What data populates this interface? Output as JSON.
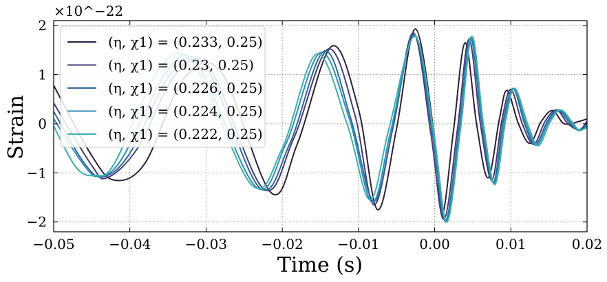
{
  "chart_data": {
    "type": "line",
    "xlabel": "Time (s)",
    "ylabel": "Strain",
    "xlim": [
      -0.05,
      0.02
    ],
    "ylim": [
      -2.2,
      2.1
    ],
    "y_scale_note": "×10^−22",
    "xticks": [
      -0.05,
      -0.04,
      -0.03,
      -0.02,
      -0.01,
      0.0,
      0.01,
      0.02
    ],
    "xtick_labels": [
      "−0.05",
      "−0.04",
      "−0.03",
      "−0.02",
      "−0.01",
      "0.00",
      "0.01",
      "0.02"
    ],
    "yticks": [
      -2,
      -1,
      0,
      1,
      2
    ],
    "ytick_labels": [
      "−2",
      "−1",
      "0",
      "1",
      "2"
    ],
    "grid": true,
    "legend_placement": "top-left",
    "series": [
      {
        "name": "(η, χ1) = (0.233, 0.25)",
        "color": "#2e1e3b",
        "x": [
          -0.05,
          -0.045,
          -0.042,
          -0.038,
          -0.033,
          -0.028,
          -0.0215,
          -0.018,
          -0.0135,
          -0.01,
          -0.0075,
          -0.005,
          -0.0025,
          0.0,
          0.001,
          0.0025,
          0.004,
          0.0055,
          0.007,
          0.0085,
          0.0095,
          0.011,
          0.0125,
          0.014,
          0.0155,
          0.017,
          0.019,
          0.02
        ],
        "values": [
          0.78,
          -0.65,
          -1.15,
          -0.8,
          0.9,
          1.05,
          -1.4,
          -0.4,
          1.58,
          0.3,
          -1.75,
          -0.1,
          1.93,
          -0.3,
          -1.85,
          -0.1,
          1.65,
          0.0,
          -1.1,
          0.1,
          0.68,
          0.0,
          -0.4,
          0.05,
          0.27,
          0.0,
          0.05,
          0.1
        ]
      },
      {
        "name": "(η, χ1) = (0.23, 0.25)",
        "color": "#433c7a",
        "x": [
          -0.05,
          -0.045,
          -0.043,
          -0.039,
          -0.034,
          -0.0295,
          -0.0225,
          -0.0185,
          -0.014,
          -0.0105,
          -0.008,
          -0.0055,
          -0.0028,
          -0.0005,
          0.0012,
          0.003,
          0.0045,
          0.006,
          0.0075,
          0.0088,
          0.01,
          0.0115,
          0.013,
          0.0145,
          0.016,
          0.0175,
          0.019,
          0.02
        ],
        "values": [
          0.42,
          -0.85,
          -1.1,
          -0.5,
          1.0,
          1.12,
          -1.32,
          -0.3,
          1.52,
          0.2,
          -1.65,
          -0.1,
          1.85,
          -0.2,
          -1.95,
          -0.1,
          1.72,
          0.0,
          -1.15,
          0.05,
          0.7,
          0.0,
          -0.42,
          0.05,
          0.28,
          0.0,
          -0.12,
          0.05
        ]
      },
      {
        "name": "(η, χ1) = (0.226, 0.25)",
        "color": "#2d6a94",
        "x": [
          -0.05,
          -0.046,
          -0.0435,
          -0.04,
          -0.0345,
          -0.03,
          -0.023,
          -0.019,
          -0.0145,
          -0.011,
          -0.008,
          -0.0055,
          -0.0027,
          -0.0003,
          0.0014,
          0.0032,
          0.0047,
          0.0062,
          0.0077,
          0.009,
          0.0103,
          0.0118,
          0.0132,
          0.0148,
          0.0162,
          0.0178,
          0.019,
          0.02
        ],
        "values": [
          0.25,
          -0.8,
          -1.08,
          -0.6,
          1.05,
          1.15,
          -1.3,
          -0.4,
          1.48,
          0.1,
          -1.58,
          -0.1,
          1.82,
          -0.2,
          -1.98,
          -0.1,
          1.75,
          0.0,
          -1.2,
          0.05,
          0.72,
          0.0,
          -0.43,
          0.05,
          0.28,
          0.0,
          -0.14,
          0.0
        ]
      },
      {
        "name": "(η, χ1) = (0.224, 0.25)",
        "color": "#2f8db8",
        "x": [
          -0.05,
          -0.046,
          -0.044,
          -0.041,
          -0.035,
          -0.031,
          -0.0235,
          -0.0195,
          -0.015,
          -0.0112,
          -0.0082,
          -0.0057,
          -0.0026,
          -0.0002,
          0.0015,
          0.0033,
          0.0048,
          0.0063,
          0.0078,
          0.0092,
          0.0104,
          0.012,
          0.0134,
          0.015,
          0.0164,
          0.018,
          0.019,
          0.02
        ],
        "values": [
          0.1,
          -0.85,
          -1.07,
          -0.7,
          1.1,
          1.17,
          -1.28,
          -0.4,
          1.45,
          0.1,
          -1.6,
          -0.1,
          1.8,
          -0.2,
          -2.0,
          -0.1,
          1.77,
          0.0,
          -1.22,
          0.05,
          0.72,
          0.0,
          -0.44,
          0.05,
          0.28,
          0.0,
          -0.14,
          -0.05
        ]
      },
      {
        "name": "(η, χ1) = (0.222, 0.25)",
        "color": "#3db0ae",
        "x": [
          -0.05,
          -0.047,
          -0.0445,
          -0.042,
          -0.036,
          -0.0315,
          -0.024,
          -0.02,
          -0.0155,
          -0.0115,
          -0.0085,
          -0.006,
          -0.0026,
          -0.0001,
          0.0016,
          0.0034,
          0.0049,
          0.0064,
          0.0079,
          0.0093,
          0.0105,
          0.0122,
          0.0136,
          0.0152,
          0.0166,
          0.0182,
          0.019,
          0.02
        ],
        "values": [
          -0.05,
          -0.9,
          -1.05,
          -0.8,
          1.15,
          1.18,
          -1.25,
          -0.5,
          1.42,
          0.0,
          -1.55,
          -0.1,
          1.78,
          -0.2,
          -2.0,
          -0.1,
          1.78,
          0.0,
          -1.24,
          0.05,
          0.72,
          0.0,
          -0.45,
          0.05,
          0.28,
          0.0,
          -0.13,
          -0.08
        ]
      }
    ]
  }
}
